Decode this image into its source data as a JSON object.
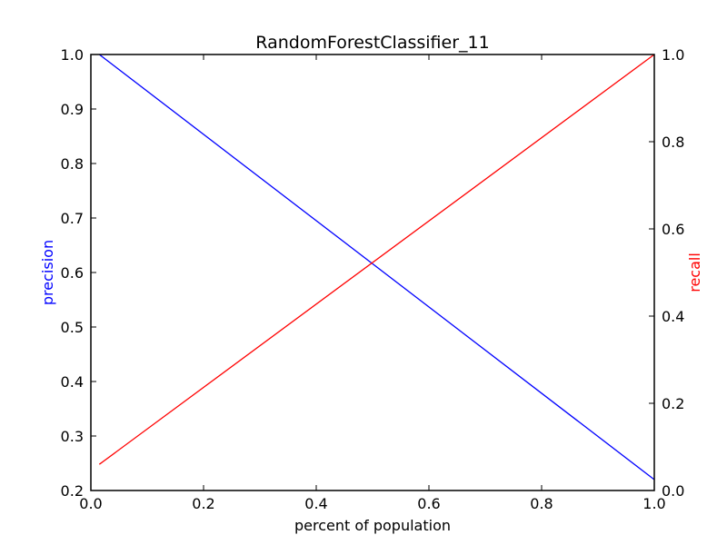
{
  "chart_data": {
    "type": "line",
    "title": "RandomForestClassifier_11",
    "xlabel": "percent of population",
    "ylabel_left": "precision",
    "ylabel_right": "recall",
    "xlim": [
      0.0,
      1.0
    ],
    "ylim_left": [
      0.2,
      1.0
    ],
    "ylim_right": [
      0.0,
      1.0
    ],
    "xticks": [
      "0.0",
      "0.2",
      "0.4",
      "0.6",
      "0.8",
      "1.0"
    ],
    "yticks_left": [
      "0.2",
      "0.3",
      "0.4",
      "0.5",
      "0.6",
      "0.7",
      "0.8",
      "0.9",
      "1.0"
    ],
    "yticks_right": [
      "0.0",
      "0.2",
      "0.4",
      "0.6",
      "0.8",
      "1.0"
    ],
    "grid": false,
    "series": [
      {
        "name": "precision",
        "axis": "left",
        "color": "#0000ff",
        "x": [
          0.015,
          1.0
        ],
        "y": [
          1.0,
          0.22
        ]
      },
      {
        "name": "recall",
        "axis": "right",
        "color": "#ff0000",
        "x": [
          0.015,
          1.0
        ],
        "y": [
          0.06,
          1.0
        ]
      }
    ]
  }
}
